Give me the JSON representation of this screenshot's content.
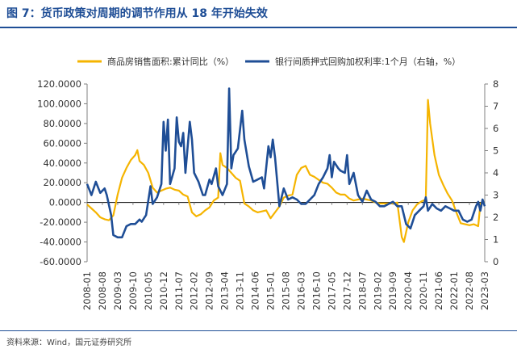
{
  "title": "图 7：货币政策对周期的调节作用从 18 年开始失效",
  "source": "资料来源：Wind，国元证券研究所",
  "chart_data": {
    "type": "line",
    "title": "图 7：货币政策对周期的调节作用从 18 年开始失效",
    "colors": {
      "sales": "#f5b400",
      "repo": "#1f4e96"
    },
    "legend_position": "top",
    "y_left": {
      "range": [
        -60,
        120
      ],
      "ticks": [
        120,
        100,
        80,
        60,
        40,
        20,
        0,
        -20,
        -40,
        -60
      ],
      "tick_labels": [
        "120.0000",
        "100.0000",
        "80.0000",
        "60.0000",
        "40.0000",
        "20.0000",
        "0.0000",
        "-20.0000",
        "-40.0000",
        "-60.0000"
      ]
    },
    "y_right": {
      "range": [
        0,
        8
      ],
      "ticks": [
        8,
        7,
        6,
        5,
        4,
        3,
        2,
        1,
        0
      ],
      "tick_labels": [
        "8",
        "7",
        "6",
        "5",
        "4",
        "3",
        "2",
        "1",
        "0"
      ]
    },
    "x_range": [
      "2008-01",
      "2023-03"
    ],
    "x_tick_labels": [
      "2008-01",
      "2008-08",
      "2009-03",
      "2009-10",
      "2010-05",
      "2010-12",
      "2011-07",
      "2012-02",
      "2012-09",
      "2013-04",
      "2013-11",
      "2014-06",
      "2015-01",
      "2015-08",
      "2016-03",
      "2016-10",
      "2017-05",
      "2017-12",
      "2018-07",
      "2019-02",
      "2019-09",
      "2020-04",
      "2020-11",
      "2021-06",
      "2022-01",
      "2022-08",
      "2023-03"
    ],
    "grid": false,
    "series": [
      {
        "name": "商品房销售面积:累计同比（%）",
        "axis": "left",
        "points": [
          [
            "2008-01",
            -2
          ],
          [
            "2008-03",
            -6
          ],
          [
            "2008-05",
            -10
          ],
          [
            "2008-07",
            -15
          ],
          [
            "2008-09",
            -17
          ],
          [
            "2008-11",
            -18
          ],
          [
            "2009-01",
            -13
          ],
          [
            "2009-03",
            8
          ],
          [
            "2009-05",
            25
          ],
          [
            "2009-07",
            35
          ],
          [
            "2009-09",
            43
          ],
          [
            "2009-11",
            48
          ],
          [
            "2009-12",
            53
          ],
          [
            "2010-01",
            42
          ],
          [
            "2010-03",
            38
          ],
          [
            "2010-05",
            30
          ],
          [
            "2010-07",
            15
          ],
          [
            "2010-09",
            10
          ],
          [
            "2010-11",
            12
          ],
          [
            "2011-01",
            14
          ],
          [
            "2011-03",
            15
          ],
          [
            "2011-05",
            13
          ],
          [
            "2011-07",
            12
          ],
          [
            "2011-09",
            8
          ],
          [
            "2011-11",
            6
          ],
          [
            "2012-01",
            -10
          ],
          [
            "2012-03",
            -14
          ],
          [
            "2012-05",
            -12
          ],
          [
            "2012-07",
            -8
          ],
          [
            "2012-09",
            -5
          ],
          [
            "2012-11",
            2
          ],
          [
            "2013-01",
            5
          ],
          [
            "2013-02",
            50
          ],
          [
            "2013-03",
            38
          ],
          [
            "2013-05",
            35
          ],
          [
            "2013-07",
            30
          ],
          [
            "2013-09",
            25
          ],
          [
            "2013-11",
            22
          ],
          [
            "2014-01",
            -1
          ],
          [
            "2014-03",
            -4
          ],
          [
            "2014-05",
            -8
          ],
          [
            "2014-07",
            -10
          ],
          [
            "2014-09",
            -9
          ],
          [
            "2014-11",
            -8
          ],
          [
            "2015-01",
            -16
          ],
          [
            "2015-03",
            -10
          ],
          [
            "2015-05",
            -4
          ],
          [
            "2015-07",
            5
          ],
          [
            "2015-09",
            7
          ],
          [
            "2015-11",
            8
          ],
          [
            "2016-01",
            28
          ],
          [
            "2016-03",
            35
          ],
          [
            "2016-05",
            37
          ],
          [
            "2016-07",
            28
          ],
          [
            "2016-09",
            26
          ],
          [
            "2016-11",
            23
          ],
          [
            "2017-01",
            20
          ],
          [
            "2017-03",
            19
          ],
          [
            "2017-05",
            15
          ],
          [
            "2017-07",
            10
          ],
          [
            "2017-09",
            8
          ],
          [
            "2017-11",
            8
          ],
          [
            "2018-01",
            4
          ],
          [
            "2018-03",
            2
          ],
          [
            "2018-05",
            3
          ],
          [
            "2018-07",
            4
          ],
          [
            "2018-09",
            3
          ],
          [
            "2018-11",
            2
          ],
          [
            "2019-01",
            0
          ],
          [
            "2019-03",
            -1
          ],
          [
            "2019-05",
            -1
          ],
          [
            "2019-07",
            -1
          ],
          [
            "2019-09",
            -1
          ],
          [
            "2019-11",
            0
          ],
          [
            "2020-01",
            -35
          ],
          [
            "2020-02",
            -40
          ],
          [
            "2020-04",
            -20
          ],
          [
            "2020-06",
            -8
          ],
          [
            "2020-08",
            -2
          ],
          [
            "2020-10",
            1
          ],
          [
            "2020-12",
            3
          ],
          [
            "2021-01",
            104
          ],
          [
            "2021-02",
            80
          ],
          [
            "2021-04",
            48
          ],
          [
            "2021-06",
            28
          ],
          [
            "2021-08",
            18
          ],
          [
            "2021-10",
            9
          ],
          [
            "2021-12",
            2
          ],
          [
            "2022-02",
            -10
          ],
          [
            "2022-04",
            -21
          ],
          [
            "2022-06",
            -22
          ],
          [
            "2022-08",
            -23
          ],
          [
            "2022-10",
            -22
          ],
          [
            "2022-12",
            -24
          ],
          [
            "2023-01",
            -1
          ],
          [
            "2023-03",
            0
          ]
        ]
      },
      {
        "name": "银行间质押式回购加权利率:1个月（右轴，%）",
        "axis": "right",
        "points": [
          [
            "2008-01",
            3.5
          ],
          [
            "2008-03",
            3.0
          ],
          [
            "2008-05",
            3.6
          ],
          [
            "2008-07",
            3.1
          ],
          [
            "2008-09",
            3.3
          ],
          [
            "2008-10",
            3.0
          ],
          [
            "2008-12",
            2.1
          ],
          [
            "2009-01",
            1.2
          ],
          [
            "2009-03",
            1.1
          ],
          [
            "2009-05",
            1.1
          ],
          [
            "2009-07",
            1.6
          ],
          [
            "2009-09",
            1.7
          ],
          [
            "2009-11",
            1.7
          ],
          [
            "2010-01",
            1.9
          ],
          [
            "2010-02",
            1.8
          ],
          [
            "2010-04",
            2.1
          ],
          [
            "2010-06",
            3.4
          ],
          [
            "2010-07",
            2.6
          ],
          [
            "2010-09",
            2.9
          ],
          [
            "2010-11",
            3.5
          ],
          [
            "2010-12",
            6.3
          ],
          [
            "2011-01",
            5.0
          ],
          [
            "2011-02",
            6.4
          ],
          [
            "2011-03",
            3.5
          ],
          [
            "2011-05",
            4.2
          ],
          [
            "2011-06",
            6.5
          ],
          [
            "2011-07",
            5.4
          ],
          [
            "2011-08",
            5.2
          ],
          [
            "2011-09",
            5.8
          ],
          [
            "2011-10",
            4.0
          ],
          [
            "2011-12",
            6.3
          ],
          [
            "2012-01",
            5.5
          ],
          [
            "2012-02",
            4.0
          ],
          [
            "2012-04",
            3.6
          ],
          [
            "2012-06",
            3.0
          ],
          [
            "2012-07",
            3.0
          ],
          [
            "2012-09",
            3.7
          ],
          [
            "2012-10",
            3.5
          ],
          [
            "2012-12",
            4.2
          ],
          [
            "2013-01",
            3.4
          ],
          [
            "2013-03",
            3.0
          ],
          [
            "2013-05",
            3.5
          ],
          [
            "2013-06",
            7.8
          ],
          [
            "2013-07",
            4.2
          ],
          [
            "2013-08",
            4.8
          ],
          [
            "2013-10",
            5.1
          ],
          [
            "2013-12",
            6.8
          ],
          [
            "2014-01",
            5.5
          ],
          [
            "2014-03",
            4.3
          ],
          [
            "2014-05",
            3.6
          ],
          [
            "2014-07",
            3.7
          ],
          [
            "2014-09",
            3.8
          ],
          [
            "2014-10",
            3.3
          ],
          [
            "2014-12",
            5.2
          ],
          [
            "2015-01",
            4.7
          ],
          [
            "2015-02",
            5.5
          ],
          [
            "2015-03",
            4.7
          ],
          [
            "2015-05",
            2.5
          ],
          [
            "2015-07",
            3.3
          ],
          [
            "2015-09",
            2.8
          ],
          [
            "2015-11",
            2.9
          ],
          [
            "2016-01",
            2.8
          ],
          [
            "2016-03",
            2.6
          ],
          [
            "2016-05",
            2.6
          ],
          [
            "2016-07",
            2.8
          ],
          [
            "2016-09",
            3.0
          ],
          [
            "2016-11",
            3.5
          ],
          [
            "2017-01",
            3.8
          ],
          [
            "2017-03",
            4.2
          ],
          [
            "2017-04",
            4.8
          ],
          [
            "2017-05",
            3.8
          ],
          [
            "2017-06",
            4.5
          ],
          [
            "2017-08",
            4.2
          ],
          [
            "2017-09",
            4.1
          ],
          [
            "2017-11",
            4.0
          ],
          [
            "2017-12",
            4.8
          ],
          [
            "2018-01",
            3.5
          ],
          [
            "2018-03",
            4.0
          ],
          [
            "2018-05",
            3.0
          ],
          [
            "2018-07",
            2.7
          ],
          [
            "2018-09",
            3.2
          ],
          [
            "2018-11",
            2.8
          ],
          [
            "2019-01",
            2.7
          ],
          [
            "2019-03",
            2.5
          ],
          [
            "2019-05",
            2.5
          ],
          [
            "2019-07",
            2.6
          ],
          [
            "2019-09",
            2.7
          ],
          [
            "2019-11",
            2.5
          ],
          [
            "2020-01",
            2.5
          ],
          [
            "2020-03",
            1.7
          ],
          [
            "2020-05",
            1.5
          ],
          [
            "2020-07",
            2.1
          ],
          [
            "2020-09",
            2.3
          ],
          [
            "2020-11",
            2.5
          ],
          [
            "2020-12",
            2.9
          ],
          [
            "2021-01",
            2.3
          ],
          [
            "2021-03",
            2.6
          ],
          [
            "2021-05",
            2.4
          ],
          [
            "2021-07",
            2.3
          ],
          [
            "2021-09",
            2.5
          ],
          [
            "2021-11",
            2.4
          ],
          [
            "2022-01",
            2.3
          ],
          [
            "2022-03",
            2.3
          ],
          [
            "2022-05",
            1.9
          ],
          [
            "2022-07",
            1.8
          ],
          [
            "2022-09",
            1.9
          ],
          [
            "2022-11",
            2.5
          ],
          [
            "2022-12",
            2.7
          ],
          [
            "2023-01",
            2.3
          ],
          [
            "2023-02",
            2.8
          ],
          [
            "2023-03",
            2.5
          ]
        ]
      }
    ]
  }
}
